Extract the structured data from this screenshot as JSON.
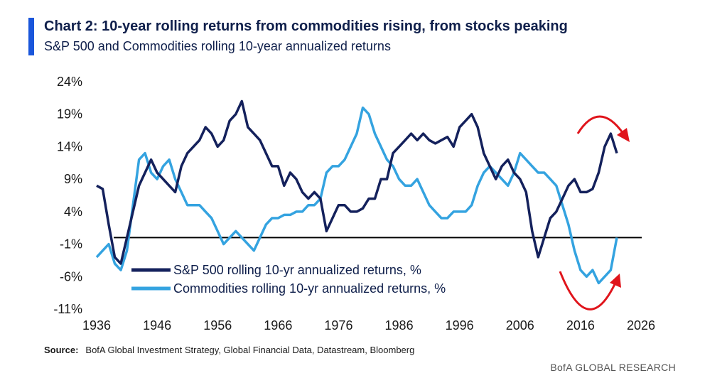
{
  "header": {
    "title": "Chart 2: 10-year rolling returns from commodities rising, from stocks peaking",
    "subtitle": "S&P 500 and Commodities rolling 10-year annualized returns"
  },
  "footer": {
    "source_label": "Source:",
    "source_text": "BofA Global Investment Strategy, Global Financial Data, Datastream, Bloomberg",
    "brand": "BofA GLOBAL RESEARCH"
  },
  "colors": {
    "sp500": "#14215c",
    "commodities": "#34a3e0",
    "accent": "#1a56db",
    "annotation_arrow": "#e0141b"
  },
  "chart_data": {
    "type": "line",
    "title": "Chart 2: 10-year rolling returns from commodities rising, from stocks peaking",
    "subtitle": "S&P 500 and Commodities rolling 10-year annualized returns",
    "xlim": [
      1936,
      2026
    ],
    "ylim": [
      -11,
      24
    ],
    "x_ticks": [
      1936,
      1946,
      1956,
      1966,
      1976,
      1986,
      1996,
      2006,
      2016,
      2026
    ],
    "y_ticks": [
      24,
      19,
      14,
      9,
      4,
      -1,
      -6,
      -11
    ],
    "y_tick_labels": [
      "24%",
      "19%",
      "14%",
      "9%",
      "4%",
      "-1%",
      "-6%",
      "-11%"
    ],
    "zero_line_value": 0,
    "grid": false,
    "legend_position": "bottom-left",
    "series": [
      {
        "name": "S&P 500 rolling 10-yr annualized returns, %",
        "x": [
          1936,
          1937,
          1938,
          1939,
          1940,
          1941,
          1942,
          1943,
          1944,
          1945,
          1946,
          1947,
          1948,
          1949,
          1950,
          1951,
          1952,
          1953,
          1954,
          1955,
          1956,
          1957,
          1958,
          1959,
          1960,
          1961,
          1962,
          1963,
          1964,
          1965,
          1966,
          1967,
          1968,
          1969,
          1970,
          1971,
          1972,
          1973,
          1974,
          1975,
          1976,
          1977,
          1978,
          1979,
          1980,
          1981,
          1982,
          1983,
          1984,
          1985,
          1986,
          1987,
          1988,
          1989,
          1990,
          1991,
          1992,
          1993,
          1994,
          1995,
          1996,
          1997,
          1998,
          1999,
          2000,
          2001,
          2002,
          2003,
          2004,
          2005,
          2006,
          2007,
          2008,
          2009,
          2010,
          2011,
          2012,
          2013,
          2014,
          2015,
          2016,
          2017,
          2018,
          2019,
          2020,
          2021,
          2022
        ],
        "values": [
          8,
          7.5,
          2,
          -3,
          -4,
          0,
          4,
          8,
          10,
          12,
          10,
          9,
          8,
          7,
          11,
          13,
          14,
          15,
          17,
          16,
          14,
          15,
          18,
          19,
          21,
          17,
          16,
          15,
          13,
          11,
          11,
          8,
          10,
          9,
          7,
          6,
          7,
          6,
          1,
          3,
          5,
          5,
          4,
          4,
          4.5,
          6,
          6,
          9,
          9,
          13,
          14,
          15,
          16,
          15,
          16,
          15,
          14.5,
          15,
          15.5,
          14,
          17,
          18,
          19,
          17,
          13,
          11,
          9,
          11,
          12,
          10,
          9,
          7,
          1,
          -3,
          0,
          3,
          4,
          6,
          8,
          9,
          7,
          7,
          7.5,
          10,
          14,
          16,
          13
        ]
      },
      {
        "name": "Commodities rolling 10-yr annualized returns, %",
        "x": [
          1936,
          1937,
          1938,
          1939,
          1940,
          1941,
          1942,
          1943,
          1944,
          1945,
          1946,
          1947,
          1948,
          1949,
          1950,
          1951,
          1952,
          1953,
          1954,
          1955,
          1956,
          1957,
          1958,
          1959,
          1960,
          1961,
          1962,
          1963,
          1964,
          1965,
          1966,
          1967,
          1968,
          1969,
          1970,
          1971,
          1972,
          1973,
          1974,
          1975,
          1976,
          1977,
          1978,
          1979,
          1980,
          1981,
          1982,
          1983,
          1984,
          1985,
          1986,
          1987,
          1988,
          1989,
          1990,
          1991,
          1992,
          1993,
          1994,
          1995,
          1996,
          1997,
          1998,
          1999,
          2000,
          2001,
          2002,
          2003,
          2004,
          2005,
          2006,
          2007,
          2008,
          2009,
          2010,
          2011,
          2012,
          2013,
          2014,
          2015,
          2016,
          2017,
          2018,
          2019,
          2020,
          2021,
          2022
        ],
        "values": [
          -3,
          -2,
          -1,
          -4,
          -5,
          -2,
          5,
          12,
          13,
          10,
          9,
          11,
          12,
          9,
          7,
          5,
          5,
          5,
          4,
          3,
          1,
          -1,
          0,
          1,
          0,
          -1,
          -2,
          0,
          2,
          3,
          3,
          3.5,
          3.5,
          4,
          4,
          5,
          5,
          6,
          10,
          11,
          11,
          12,
          14,
          16,
          20,
          19,
          16,
          14,
          12,
          11,
          9,
          8,
          8,
          9,
          7,
          5,
          4,
          3,
          3,
          4,
          4,
          4,
          5,
          8,
          10,
          11,
          10,
          9,
          8,
          10,
          13,
          12,
          11,
          10,
          10,
          9,
          8,
          5,
          2,
          -2,
          -5,
          -6,
          -5,
          -7,
          -6,
          -5,
          0
        ]
      }
    ]
  }
}
